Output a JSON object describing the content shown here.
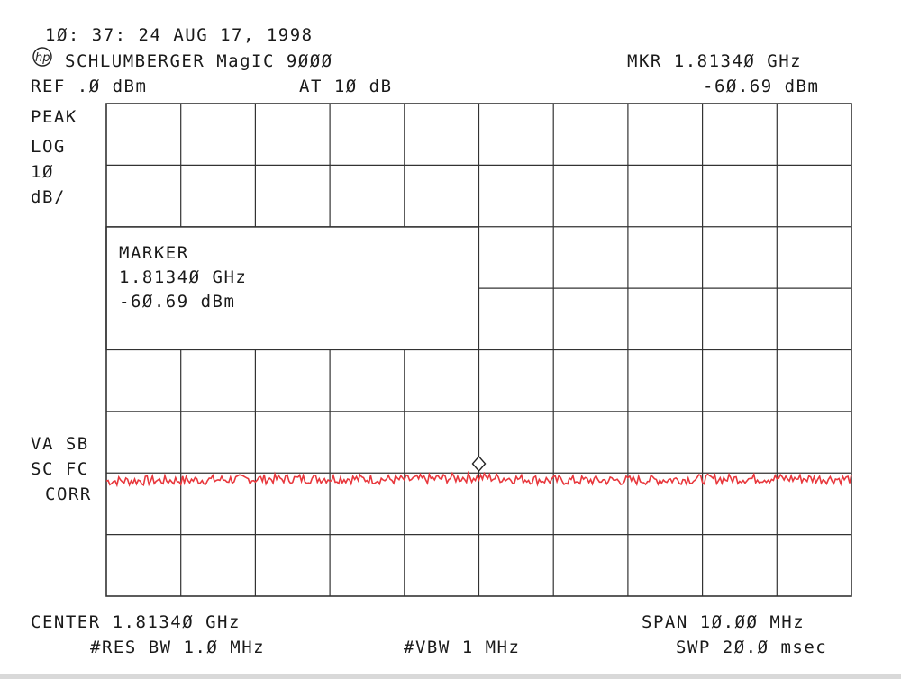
{
  "header": {
    "timestamp": "1Ø: 37: 24 AUG 17, 1998",
    "logo": "hp",
    "instrument": "SCHLUMBERGER MagIC 9ØØØ",
    "marker_freq": "MKR 1.8134Ø GHz",
    "ref_level": "REF .Ø dBm",
    "attenuation": "AT 1Ø dB",
    "marker_level": "-6Ø.69 dBm"
  },
  "left_labels": {
    "detector": "PEAK",
    "scale_type": "LOG",
    "scale_value": "1Ø",
    "scale_unit": "dB/",
    "flags_1": "VA SB",
    "flags_2": "SC FC",
    "flags_3": "CORR"
  },
  "marker_box": {
    "title": "MARKER",
    "freq": "1.8134Ø GHz",
    "level": "-6Ø.69 dBm"
  },
  "footer": {
    "center": "CENTER 1.8134Ø GHz",
    "span": "SPAN 1Ø.ØØ MHz",
    "rbw": "#RES BW 1.Ø MHz",
    "vbw": "#VBW 1 MHz",
    "sweep": "SWP 2Ø.Ø msec"
  },
  "colors": {
    "trace": "#e8383d",
    "grid": "#333333"
  },
  "chart_data": {
    "type": "line",
    "x_range_MHz": [
      1808.4,
      1818.4
    ],
    "y_range_dBm": [
      -80,
      0
    ],
    "grid": true,
    "divisions": {
      "x": 10,
      "y": 8
    },
    "marker": {
      "x": 1813.4,
      "y": -60.69
    },
    "series": [
      {
        "x": [
          1808.4,
          1809.4,
          1810.4,
          1811.4,
          1812.4,
          1813.4,
          1814.4,
          1815.4,
          1816.4,
          1817.4,
          1818.4
        ],
        "values": [
          -61.3,
          -61.2,
          -61.0,
          -60.9,
          -61.1,
          -60.7,
          -61.2,
          -61.2,
          -61.0,
          -60.9,
          -61.0
        ]
      }
    ]
  }
}
